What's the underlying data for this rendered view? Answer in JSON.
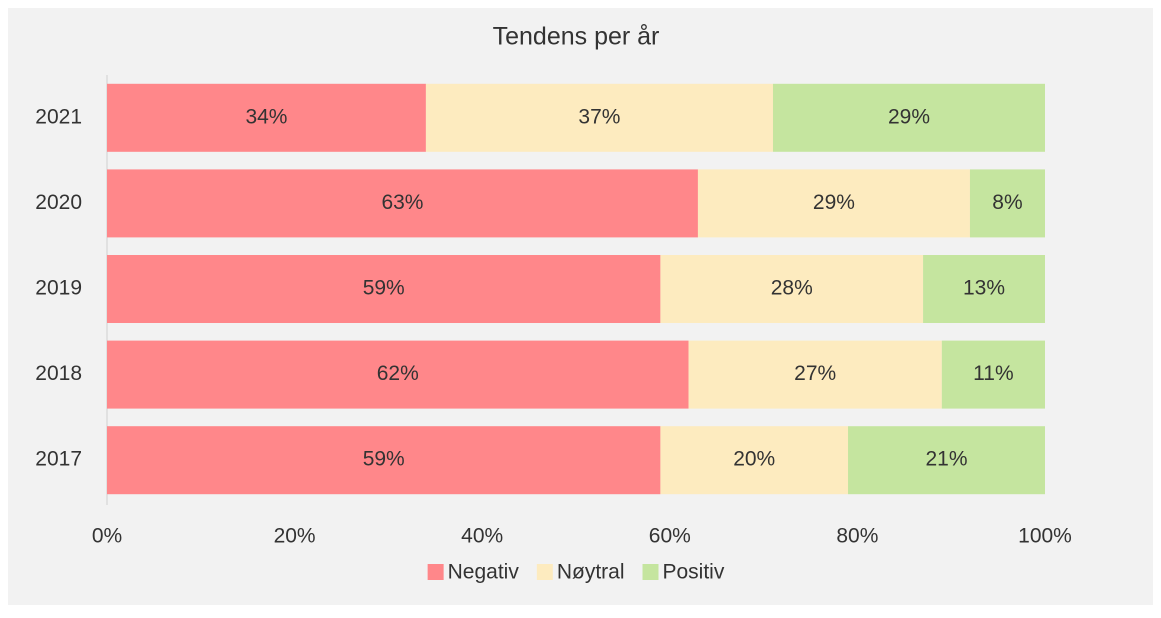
{
  "chart_data": {
    "type": "stacked-barh",
    "title": "Tendens per år",
    "categories": [
      "2021",
      "2020",
      "2019",
      "2018",
      "2017"
    ],
    "series": [
      {
        "name": "Negativ",
        "color": "#ff878a",
        "values": [
          34,
          63,
          59,
          62,
          59
        ],
        "value_labels": [
          "34%",
          "63%",
          "59%",
          "62%",
          "59%"
        ]
      },
      {
        "name": "Nøytral",
        "color": "#fdebbf",
        "values": [
          37,
          29,
          28,
          27,
          20
        ],
        "value_labels": [
          "37%",
          "29%",
          "28%",
          "27%",
          "20%"
        ]
      },
      {
        "name": "Positiv",
        "color": "#c5e59f",
        "values": [
          29,
          8,
          13,
          11,
          21
        ],
        "value_labels": [
          "29%",
          "8%",
          "13%",
          "11%",
          "21%"
        ]
      }
    ],
    "xlim": [
      0,
      100
    ],
    "xticks": [
      {
        "value": 0,
        "label": "0%"
      },
      {
        "value": 20,
        "label": "20%"
      },
      {
        "value": 40,
        "label": "40%"
      },
      {
        "value": 60,
        "label": "60%"
      },
      {
        "value": 80,
        "label": "80%"
      },
      {
        "value": 100,
        "label": "100%"
      }
    ],
    "legend": "bottom",
    "grid": false
  }
}
